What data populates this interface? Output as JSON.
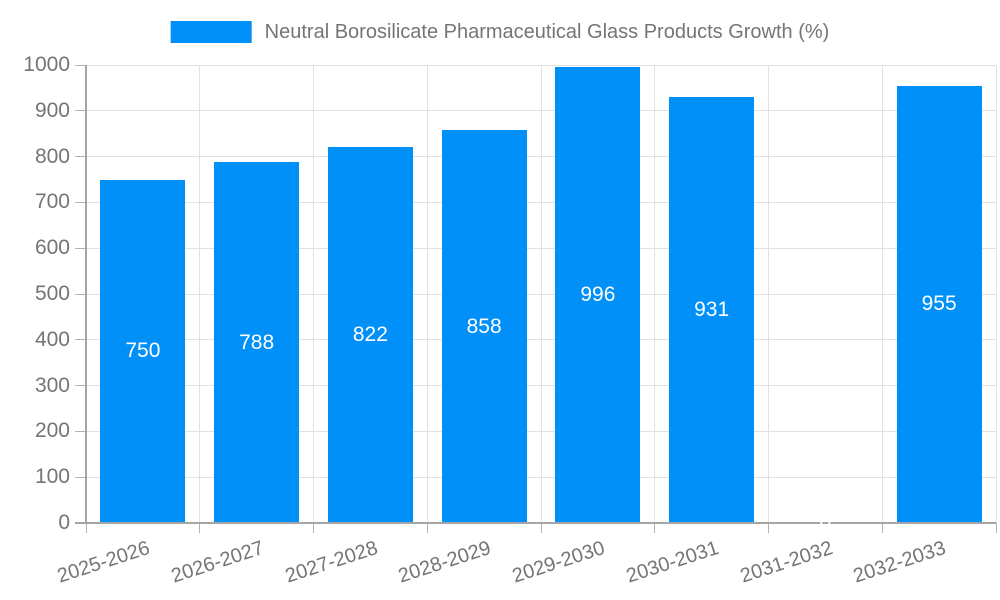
{
  "chart_data": {
    "type": "bar",
    "title": "",
    "series_label": "Neutral Borosilicate Pharmaceutical Glass Products Growth (%)",
    "categories": [
      "2025-2026",
      "2026-2027",
      "2027-2028",
      "2028-2029",
      "2029-2030",
      "2030-2031",
      "2031-2032",
      "2032-2033"
    ],
    "values": [
      750,
      788,
      822,
      858,
      996,
      931,
      0,
      955
    ],
    "data_labels": [
      "750",
      "788",
      "822",
      "858",
      "996",
      "931",
      "0",
      "955"
    ],
    "xlabel": "",
    "ylabel": "",
    "ylim": [
      0,
      1000
    ],
    "yticks": [
      0,
      100,
      200,
      300,
      400,
      500,
      600,
      700,
      800,
      900,
      1000
    ],
    "grid": true,
    "legend_position": "top",
    "data_label_position": "inside-center",
    "x_tick_rotation_deg": -18,
    "colors": {
      "bar": "#0090f8",
      "bar_label": "#ffffff",
      "grid": "#e2e2e2",
      "tick_mark": "#b2b2b2",
      "axis": "#a5a5a5",
      "text": "#757575",
      "background": "#ffffff"
    }
  }
}
